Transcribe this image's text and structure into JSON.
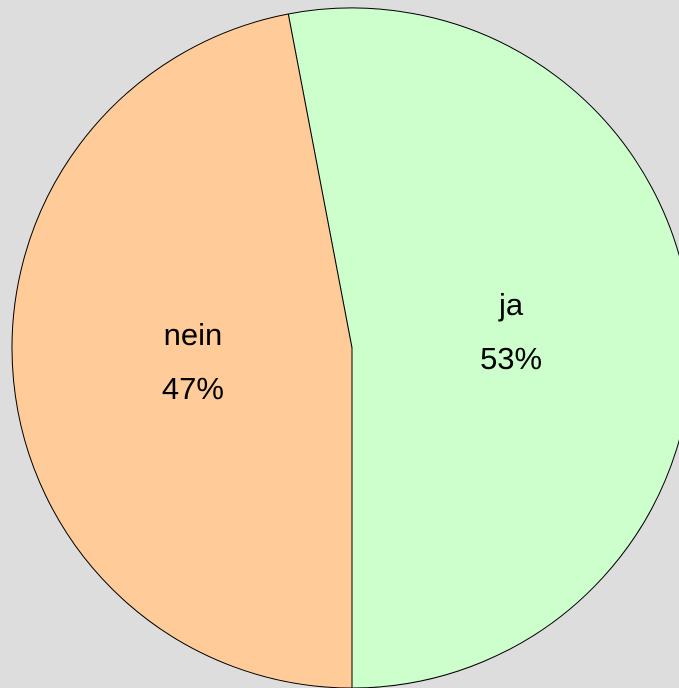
{
  "chart_data": {
    "type": "pie",
    "categories": [
      "ja",
      "nein"
    ],
    "values": [
      53,
      47
    ],
    "value_labels": [
      "53%",
      "47%"
    ],
    "colors": [
      "#ccffcc",
      "#ffcc99"
    ],
    "start_angle": 180,
    "direction": "counterclockwise"
  }
}
